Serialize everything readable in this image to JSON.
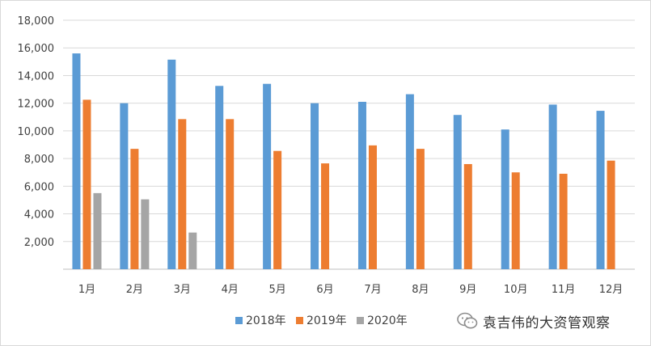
{
  "chart_data": {
    "type": "bar",
    "title": "",
    "xlabel": "",
    "ylabel": "",
    "categories": [
      "1月",
      "2月",
      "3月",
      "4月",
      "5月",
      "6月",
      "7月",
      "8月",
      "9月",
      "10月",
      "11月",
      "12月"
    ],
    "series": [
      {
        "name": "2018年",
        "color": "#5b9bd5",
        "values": [
          15600,
          12000,
          15150,
          13250,
          13400,
          12000,
          12100,
          12650,
          11150,
          10100,
          11900,
          11450
        ]
      },
      {
        "name": "2019年",
        "color": "#ed7d31",
        "values": [
          12250,
          8700,
          10850,
          10850,
          8550,
          7650,
          8950,
          8700,
          7600,
          7000,
          6900,
          7850
        ]
      },
      {
        "name": "2020年",
        "color": "#a5a5a5",
        "values": [
          5500,
          5050,
          2650,
          null,
          null,
          null,
          null,
          null,
          null,
          null,
          null,
          null
        ]
      }
    ],
    "ylim": [
      0,
      18000
    ],
    "yticks": [
      "2,000",
      "4,000",
      "6,000",
      "8,000",
      "10,000",
      "12,000",
      "14,000",
      "16,000",
      "18,000"
    ],
    "ytick_values": [
      2000,
      4000,
      6000,
      8000,
      10000,
      12000,
      14000,
      16000,
      18000
    ],
    "grid": true,
    "legend_position": "bottom"
  },
  "watermark": {
    "icon": "wechat-icon",
    "text": "袁吉伟的大资管观察"
  }
}
